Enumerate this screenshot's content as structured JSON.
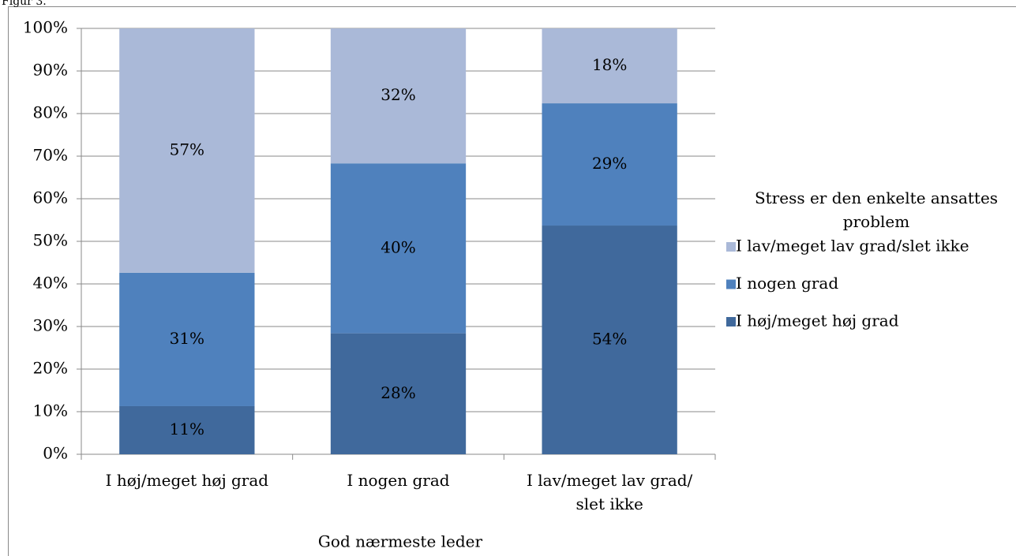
{
  "chart_data": {
    "type": "stacked_bar",
    "title": "Figur 3.",
    "categories": [
      "I høj/meget høj grad",
      "I nogen grad",
      "I lav/meget lav grad/ slet ikke"
    ],
    "x_label": "God nærmeste leder",
    "legend_title": "Stress er den enkelte ansattes problem",
    "series": [
      {
        "name": "I høj/meget høj grad",
        "color": "#40699c",
        "values": [
          11.3,
          28.4,
          53.7
        ],
        "value_labels": [
          "11%",
          "28%",
          "54%"
        ]
      },
      {
        "name": "I nogen grad",
        "color": "#4f81bd",
        "values": [
          31.3,
          39.9,
          28.7
        ],
        "value_labels": [
          "31%",
          "40%",
          "29%"
        ]
      },
      {
        "name": "I lav/meget lav grad/slet ikke",
        "color": "#aab9d8",
        "values": [
          57.4,
          31.7,
          17.6
        ],
        "value_labels": [
          "57%",
          "32%",
          "18%"
        ]
      }
    ],
    "ylim": [
      0,
      100
    ],
    "yticks": [
      {
        "value": 0,
        "label": "0%"
      },
      {
        "value": 10,
        "label": "10%"
      },
      {
        "value": 20,
        "label": "20%"
      },
      {
        "value": 30,
        "label": "30%"
      },
      {
        "value": 40,
        "label": "40%"
      },
      {
        "value": 50,
        "label": "50%"
      },
      {
        "value": 60,
        "label": "60%"
      },
      {
        "value": 70,
        "label": "70%"
      },
      {
        "value": 80,
        "label": "80%"
      },
      {
        "value": 90,
        "label": "90%"
      },
      {
        "value": 100,
        "label": "100%"
      }
    ],
    "grid": true,
    "legend": "right"
  }
}
